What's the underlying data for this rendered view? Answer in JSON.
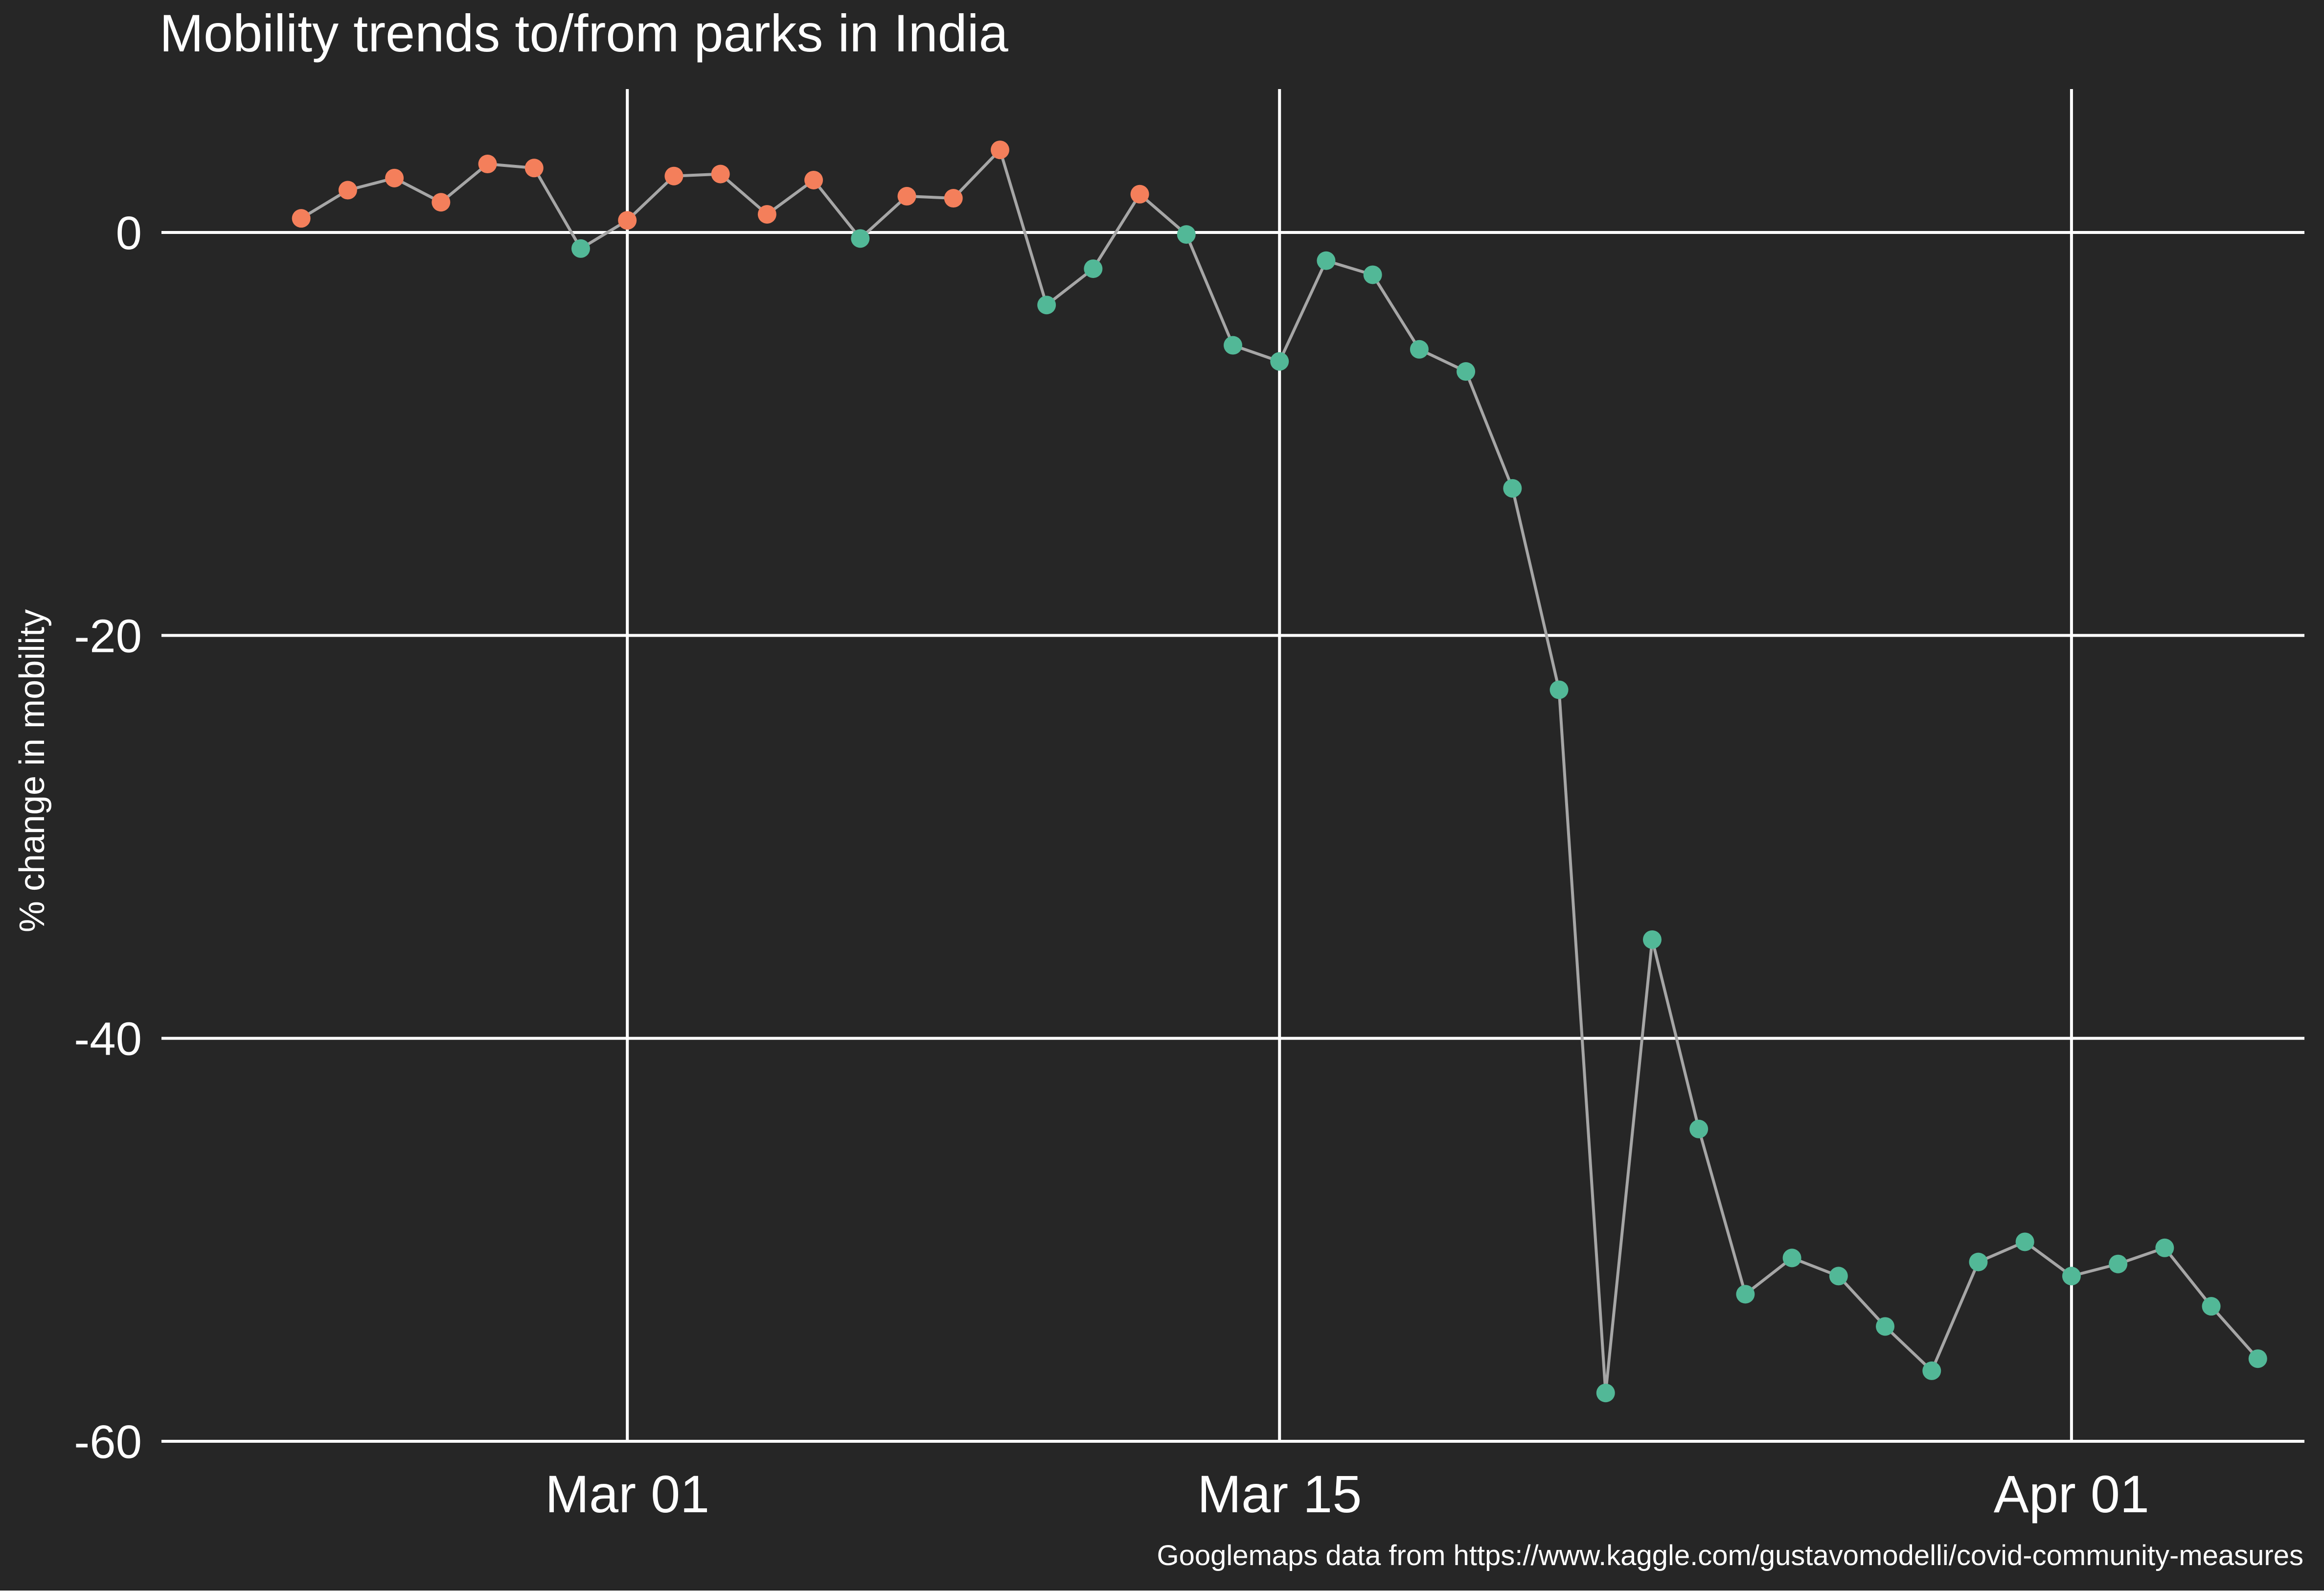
{
  "chart_data": {
    "type": "line",
    "title": "Mobility trends to/from parks in India",
    "xlabel": "",
    "ylabel": "% change in mobility",
    "caption": "Googlemaps data from https://www.kaggle.com/gustavomodelli/covid-community-measures",
    "x_tick_labels": [
      "Mar 01",
      "Mar 15",
      "Apr 01"
    ],
    "x_tick_dates": [
      "2020-03-01",
      "2020-03-15",
      "2020-04-01"
    ],
    "y_tick_labels": [
      "0",
      "-20",
      "-40",
      "-60"
    ],
    "y_tick_values": [
      0,
      -20,
      -40,
      -60
    ],
    "ylim": [
      -60,
      5
    ],
    "xlim": [
      "2020-02-20",
      "2020-04-06"
    ],
    "grid": true,
    "colors": {
      "background": "#262626",
      "grid": "#ffffff",
      "line": "#a6a6a6",
      "positive_point": "#f47f5b",
      "negative_point": "#52b897",
      "text": "#ffffff"
    },
    "series": [
      {
        "x": [
          "2020-02-23",
          "2020-02-24",
          "2020-02-25",
          "2020-02-26",
          "2020-02-27",
          "2020-02-28",
          "2020-02-29",
          "2020-03-01",
          "2020-03-02",
          "2020-03-03",
          "2020-03-04",
          "2020-03-05",
          "2020-03-06",
          "2020-03-07",
          "2020-03-08",
          "2020-03-09",
          "2020-03-10",
          "2020-03-11",
          "2020-03-12",
          "2020-03-13",
          "2020-03-14",
          "2020-03-15",
          "2020-03-16",
          "2020-03-17",
          "2020-03-18",
          "2020-03-19",
          "2020-03-20",
          "2020-03-21",
          "2020-03-22",
          "2020-03-23",
          "2020-03-24",
          "2020-03-25",
          "2020-03-26",
          "2020-03-27",
          "2020-03-28",
          "2020-03-29",
          "2020-03-30",
          "2020-03-31",
          "2020-04-01",
          "2020-04-02",
          "2020-04-03",
          "2020-04-04",
          "2020-04-05"
        ],
        "values": [
          0.7,
          2.1,
          2.7,
          1.5,
          3.4,
          3.2,
          -0.8,
          0.6,
          2.8,
          2.9,
          0.9,
          2.6,
          -0.3,
          1.8,
          1.7,
          4.1,
          -3.6,
          -1.8,
          1.9,
          -0.1,
          -5.6,
          -6.4,
          -1.4,
          -2.1,
          -5.8,
          -6.9,
          -12.7,
          -22.7,
          -57.6,
          -35.1,
          -44.5,
          -52.7,
          -50.9,
          -51.8,
          -54.3,
          -56.5,
          -51.1,
          -50.1,
          -51.8,
          -51.2,
          -50.4,
          -53.3,
          -55.9
        ]
      }
    ]
  }
}
